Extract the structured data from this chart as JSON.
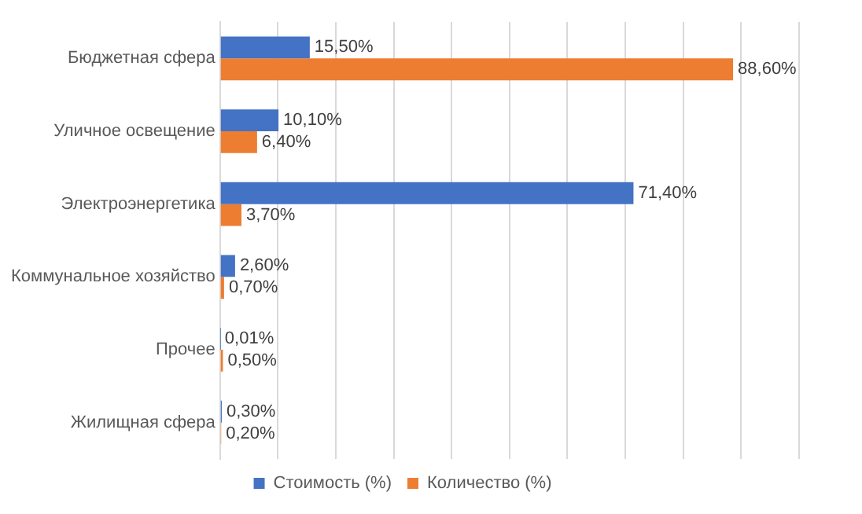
{
  "chart_data": {
    "type": "bar",
    "orientation": "horizontal",
    "categories": [
      "Бюджетная сфера",
      "Уличное освещение",
      "Электроэнергетика",
      "Коммунальное хозяйство",
      "Прочее",
      "Жилищная сфера"
    ],
    "series": [
      {
        "name": "Стоимость (%)",
        "color": "#4472c4",
        "values": [
          15.5,
          10.1,
          71.4,
          2.6,
          0.01,
          0.3
        ],
        "value_labels": [
          "15,50%",
          "10,10%",
          "71,40%",
          "2,60%",
          "0,01%",
          "0,30%"
        ]
      },
      {
        "name": "Количество (%)",
        "color": "#ed7d31",
        "values": [
          88.6,
          6.4,
          3.7,
          0.7,
          0.5,
          0.2
        ],
        "value_labels": [
          "88,60%",
          "6,40%",
          "3,70%",
          "0,70%",
          "0,50%",
          "0,20%"
        ]
      }
    ],
    "xlim": [
      0,
      100
    ],
    "xticks": [
      {
        "value": 0,
        "label": null
      },
      {
        "value": 10,
        "label": null
      },
      {
        "value": 20,
        "label": null
      },
      {
        "value": 30,
        "label": null
      },
      {
        "value": 40,
        "label": null
      },
      {
        "value": 50,
        "label": null
      },
      {
        "value": 60,
        "label": null
      },
      {
        "value": 70,
        "label": null
      },
      {
        "value": 80,
        "label": null
      },
      {
        "value": 90,
        "label": null
      },
      {
        "value": 100,
        "label": null
      }
    ],
    "grid": "x",
    "legend": "bottom",
    "tick_labels": "y"
  }
}
